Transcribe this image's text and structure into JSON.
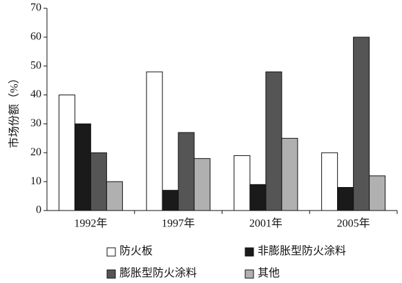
{
  "chart_data": {
    "type": "bar",
    "y_label": "市场份额（%）",
    "categories": [
      "1992年",
      "1997年",
      "2001年",
      "2005年"
    ],
    "series": [
      {
        "name": "防火板",
        "color": "#ffffff",
        "values": [
          40,
          48,
          19,
          20
        ]
      },
      {
        "name": "非膨胀型防火涂料",
        "color": "#1a1a1a",
        "values": [
          30,
          7,
          9,
          8
        ]
      },
      {
        "name": "膨胀型防火涂料",
        "color": "#555555",
        "values": [
          20,
          27,
          48,
          60
        ]
      },
      {
        "name": "其他",
        "color": "#b0b0b0",
        "values": [
          10,
          18,
          25,
          12
        ]
      }
    ],
    "ylim": [
      0,
      70
    ],
    "yticks": [
      0,
      10,
      20,
      30,
      40,
      50,
      60,
      70
    ],
    "grid": false,
    "legend": "bottom"
  }
}
